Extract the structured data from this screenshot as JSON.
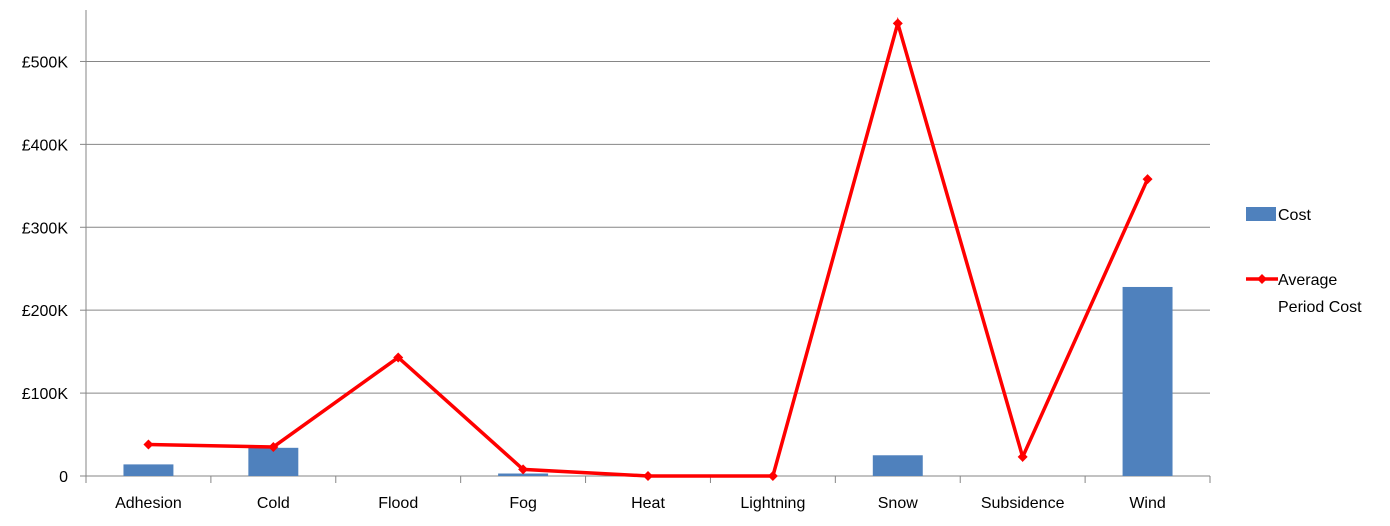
{
  "chart_data": {
    "type": "bar",
    "title_fragment": "",
    "categories": [
      "Adhesion",
      "Cold",
      "Flood",
      "Fog",
      "Heat",
      "Lightning",
      "Snow",
      "Subsidence",
      "Wind"
    ],
    "series": [
      {
        "name": "Cost",
        "type": "bar",
        "color": "#4f81bd",
        "values": [
          14000,
          34000,
          0,
          3000,
          0,
          0,
          25000,
          0,
          228000
        ]
      },
      {
        "name": "Average Period Cost",
        "type": "line",
        "color": "#ff0000",
        "marker": "diamond",
        "values": [
          38000,
          35000,
          143000,
          8000,
          0,
          0,
          546000,
          23000,
          358000
        ]
      }
    ],
    "yaxis": {
      "min": 0,
      "max": 550000,
      "ticks": [
        0,
        100000,
        200000,
        300000,
        400000,
        500000
      ],
      "tick_labels": [
        "0",
        "£100K",
        "£200K",
        "£300K",
        "£400K",
        "£500K"
      ]
    },
    "xlabel": "",
    "ylabel": "",
    "grid": true,
    "legend_position": "right",
    "legend_labels": [
      {
        "line1": "Cost",
        "line2": ""
      },
      {
        "line1": "Average",
        "line2": "Period Cost"
      }
    ]
  }
}
